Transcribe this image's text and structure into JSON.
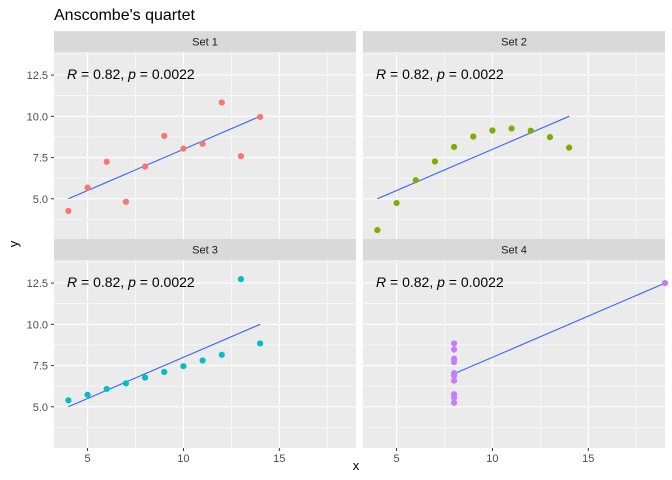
{
  "chart_data": {
    "type": "scatter",
    "title": "Anscombe's quartet",
    "xlabel": "x",
    "ylabel": "y",
    "xlim": [
      3.25,
      19.0
    ],
    "ylim": [
      2.5,
      13.9
    ],
    "x_ticks": [
      5,
      10,
      15
    ],
    "y_ticks": [
      5.0,
      7.5,
      10.0,
      12.5
    ],
    "y_tick_labels": [
      "5.0",
      "7.5",
      "10.0",
      "12.5"
    ],
    "x_tick_labels": [
      "5",
      "10",
      "15"
    ],
    "grid": true,
    "legend": "none",
    "line_color": "#3366ff",
    "annotation": {
      "r_symbol": "R",
      "p_symbol": "p",
      "r_text": " = 0.82, ",
      "p_text": " = 0.0022"
    },
    "panels": [
      {
        "name": "Set 1",
        "color": "#f8766d",
        "points": [
          [
            10,
            8.04
          ],
          [
            8,
            6.95
          ],
          [
            13,
            7.58
          ],
          [
            9,
            8.81
          ],
          [
            11,
            8.33
          ],
          [
            14,
            9.96
          ],
          [
            6,
            7.24
          ],
          [
            4,
            4.26
          ],
          [
            12,
            10.84
          ],
          [
            7,
            4.82
          ],
          [
            5,
            5.68
          ]
        ],
        "fit": [
          [
            4,
            5.0
          ],
          [
            14,
            10.0
          ]
        ]
      },
      {
        "name": "Set 2",
        "color": "#7cae00",
        "points": [
          [
            10,
            9.14
          ],
          [
            8,
            8.14
          ],
          [
            13,
            8.74
          ],
          [
            9,
            8.77
          ],
          [
            11,
            9.26
          ],
          [
            14,
            8.1
          ],
          [
            6,
            6.13
          ],
          [
            4,
            3.1
          ],
          [
            12,
            9.13
          ],
          [
            7,
            7.26
          ],
          [
            5,
            4.74
          ]
        ],
        "fit": [
          [
            4,
            5.0
          ],
          [
            14,
            10.0
          ]
        ]
      },
      {
        "name": "Set 3",
        "color": "#00bfc4",
        "points": [
          [
            10,
            7.46
          ],
          [
            8,
            6.77
          ],
          [
            13,
            12.74
          ],
          [
            9,
            7.11
          ],
          [
            11,
            7.81
          ],
          [
            14,
            8.84
          ],
          [
            6,
            6.08
          ],
          [
            4,
            5.39
          ],
          [
            12,
            8.15
          ],
          [
            7,
            6.42
          ],
          [
            5,
            5.73
          ]
        ],
        "fit": [
          [
            4,
            5.0
          ],
          [
            14,
            10.0
          ]
        ]
      },
      {
        "name": "Set 4",
        "color": "#c77cff",
        "points": [
          [
            8,
            6.58
          ],
          [
            8,
            5.76
          ],
          [
            8,
            7.71
          ],
          [
            8,
            8.84
          ],
          [
            8,
            8.47
          ],
          [
            8,
            7.04
          ],
          [
            8,
            5.25
          ],
          [
            19,
            12.5
          ],
          [
            8,
            5.56
          ],
          [
            8,
            7.91
          ],
          [
            8,
            6.89
          ]
        ],
        "fit": [
          [
            8,
            7.0
          ],
          [
            19,
            12.5
          ]
        ]
      }
    ]
  }
}
